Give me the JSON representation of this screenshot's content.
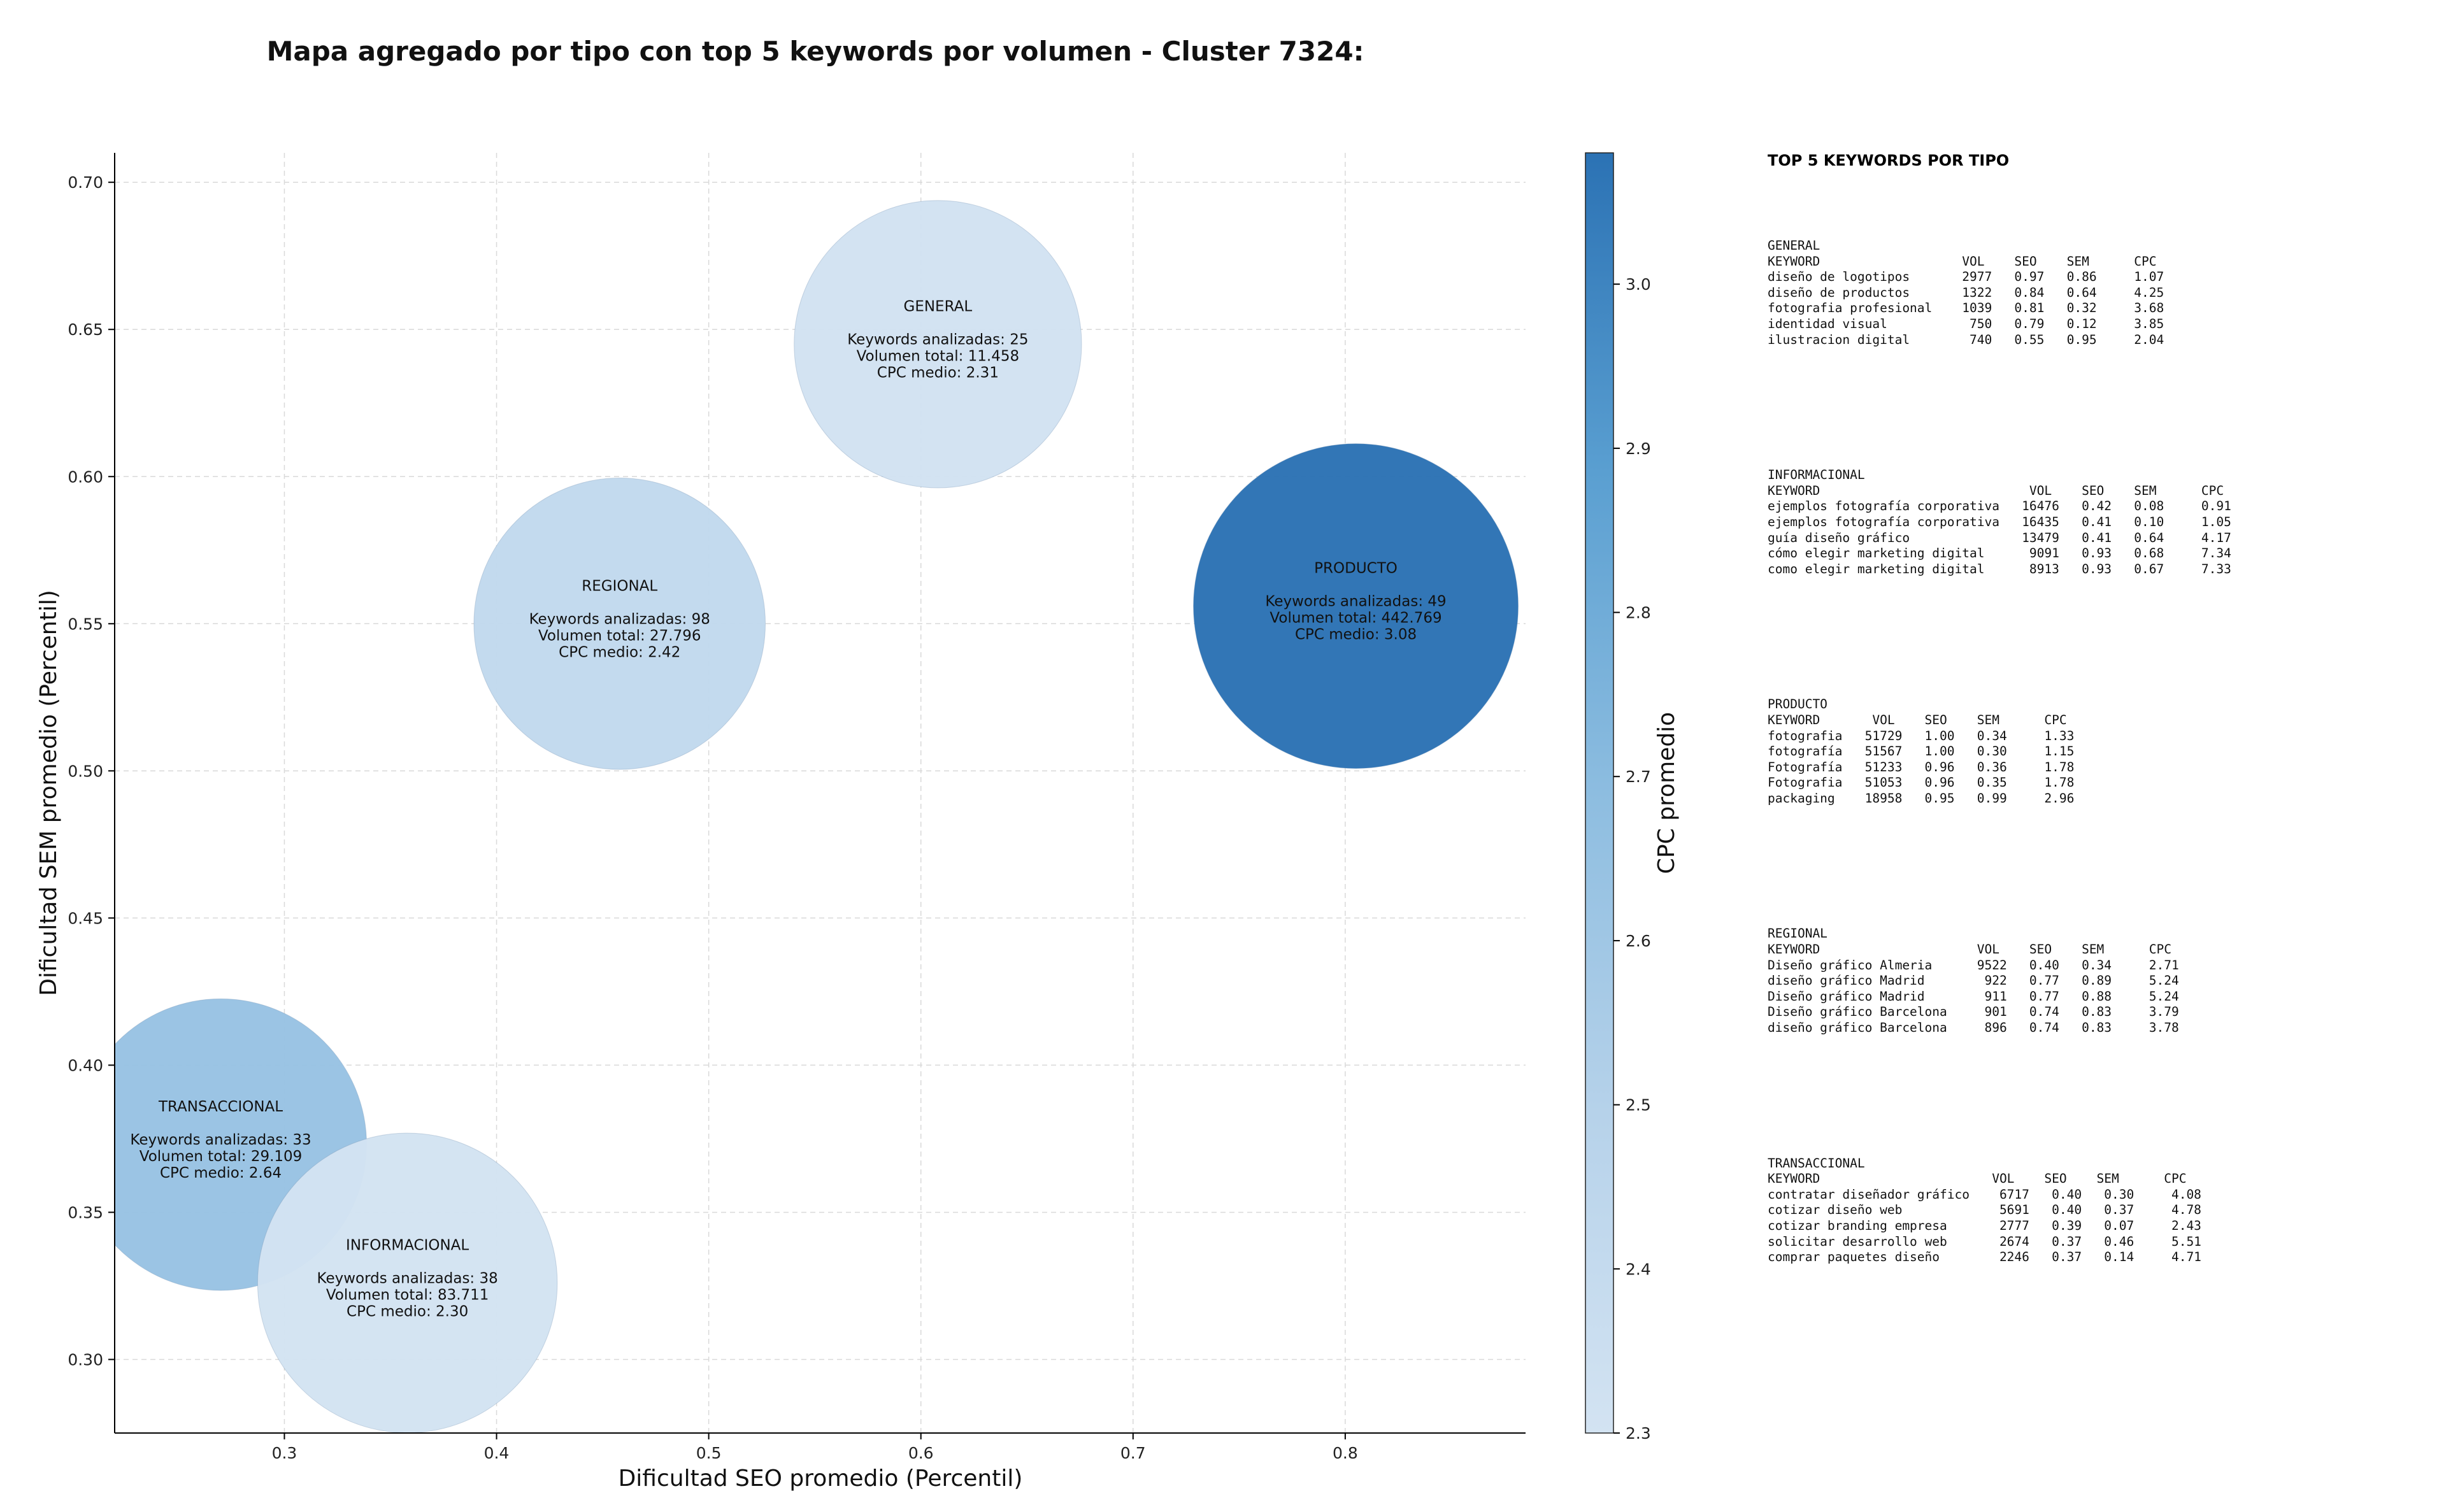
{
  "title": "Mapa agregado por tipo con top 5 keywords por volumen - Cluster 7324:",
  "chart_data": {
    "type": "scatter",
    "xlabel": "Dificultad SEO promedio (Percentil)",
    "ylabel": "Dificultad SEM promedio (Percentil)",
    "xlim": [
      0.22,
      0.885
    ],
    "ylim": [
      0.275,
      0.71
    ],
    "xticks": [
      "0.3",
      "0.4",
      "0.5",
      "0.6",
      "0.7",
      "0.8"
    ],
    "yticks": [
      "0.30",
      "0.35",
      "0.40",
      "0.45",
      "0.50",
      "0.55",
      "0.60",
      "0.65",
      "0.70"
    ],
    "grid": true,
    "colorbar": {
      "label": "CPC promedio",
      "range": [
        2.3,
        3.08
      ],
      "ticks": [
        "2.3",
        "2.4",
        "2.5",
        "2.6",
        "2.7",
        "2.8",
        "2.9",
        "3.0"
      ],
      "colormap": "Blues",
      "color_low": "#d3e3f2",
      "color_high": "#2b72b4"
    },
    "labels": {
      "keywords_prefix": "Keywords analizadas: ",
      "volume_prefix": "Volumen total: ",
      "cpc_prefix": "CPC medio: "
    },
    "points": [
      {
        "name": "GENERAL",
        "x": 0.608,
        "y": 0.645,
        "keywords": "25",
        "volume": "11.458",
        "cpc": "2.31",
        "cpc_value": 2.31
      },
      {
        "name": "REGIONAL",
        "x": 0.458,
        "y": 0.55,
        "keywords": "98",
        "volume": "27.796",
        "cpc": "2.42",
        "cpc_value": 2.42
      },
      {
        "name": "PRODUCTO",
        "x": 0.805,
        "y": 0.556,
        "keywords": "49",
        "volume": "442.769",
        "cpc": "3.08",
        "cpc_value": 3.08
      },
      {
        "name": "TRANSACCIONAL",
        "x": 0.27,
        "y": 0.373,
        "keywords": "33",
        "volume": "29.109",
        "cpc": "2.64",
        "cpc_value": 2.64
      },
      {
        "name": "INFORMACIONAL",
        "x": 0.358,
        "y": 0.326,
        "keywords": "38",
        "volume": "83.711",
        "cpc": "2.30",
        "cpc_value": 2.3
      }
    ]
  },
  "side_panel": {
    "title": "TOP 5 KEYWORDS POR TIPO",
    "blocks": [
      {
        "name": "GENERAL",
        "header": "KEYWORD                   VOL    SEO    SEM      CPC",
        "rows": [
          "diseño de logotipos       2977   0.97   0.86     1.07",
          "diseño de productos       1322   0.84   0.64     4.25",
          "fotografia profesional    1039   0.81   0.32     3.68",
          "identidad visual           750   0.79   0.12     3.85",
          "ilustracion digital        740   0.55   0.95     2.04"
        ]
      },
      {
        "name": "INFORMACIONAL",
        "header": "KEYWORD                            VOL    SEO    SEM      CPC",
        "rows": [
          "ejemplos fotografía corporativa   16476   0.42   0.08     0.91",
          "ejemplos fotografía corporativa   16435   0.41   0.10     1.05",
          "guía diseño gráfico               13479   0.41   0.64     4.17",
          "cómo elegir marketing digital      9091   0.93   0.68     7.34",
          "como elegir marketing digital      8913   0.93   0.67     7.33"
        ]
      },
      {
        "name": "PRODUCTO",
        "header": "KEYWORD       VOL    SEO    SEM      CPC",
        "rows": [
          "fotografia   51729   1.00   0.34     1.33",
          "fotografía   51567   1.00   0.30     1.15",
          "Fotografía   51233   0.96   0.36     1.78",
          "Fotografia   51053   0.96   0.35     1.78",
          "packaging    18958   0.95   0.99     2.96"
        ]
      },
      {
        "name": "REGIONAL",
        "header": "KEYWORD                     VOL    SEO    SEM      CPC",
        "rows": [
          "Diseño gráfico Almeria      9522   0.40   0.34     2.71",
          "diseño gráfico Madrid        922   0.77   0.89     5.24",
          "Diseño gráfico Madrid        911   0.77   0.88     5.24",
          "Diseño gráfico Barcelona     901   0.74   0.83     3.79",
          "diseño gráfico Barcelona     896   0.74   0.83     3.78"
        ]
      },
      {
        "name": "TRANSACCIONAL",
        "header": "KEYWORD                       VOL    SEO    SEM      CPC",
        "rows": [
          "contratar diseñador gráfico    6717   0.40   0.30     4.08",
          "cotizar diseño web             5691   0.40   0.37     4.78",
          "cotizar branding empresa       2777   0.39   0.07     2.43",
          "solicitar desarrollo web       2674   0.37   0.46     5.51",
          "comprar paquetes diseño        2246   0.37   0.14     4.71"
        ]
      }
    ]
  }
}
